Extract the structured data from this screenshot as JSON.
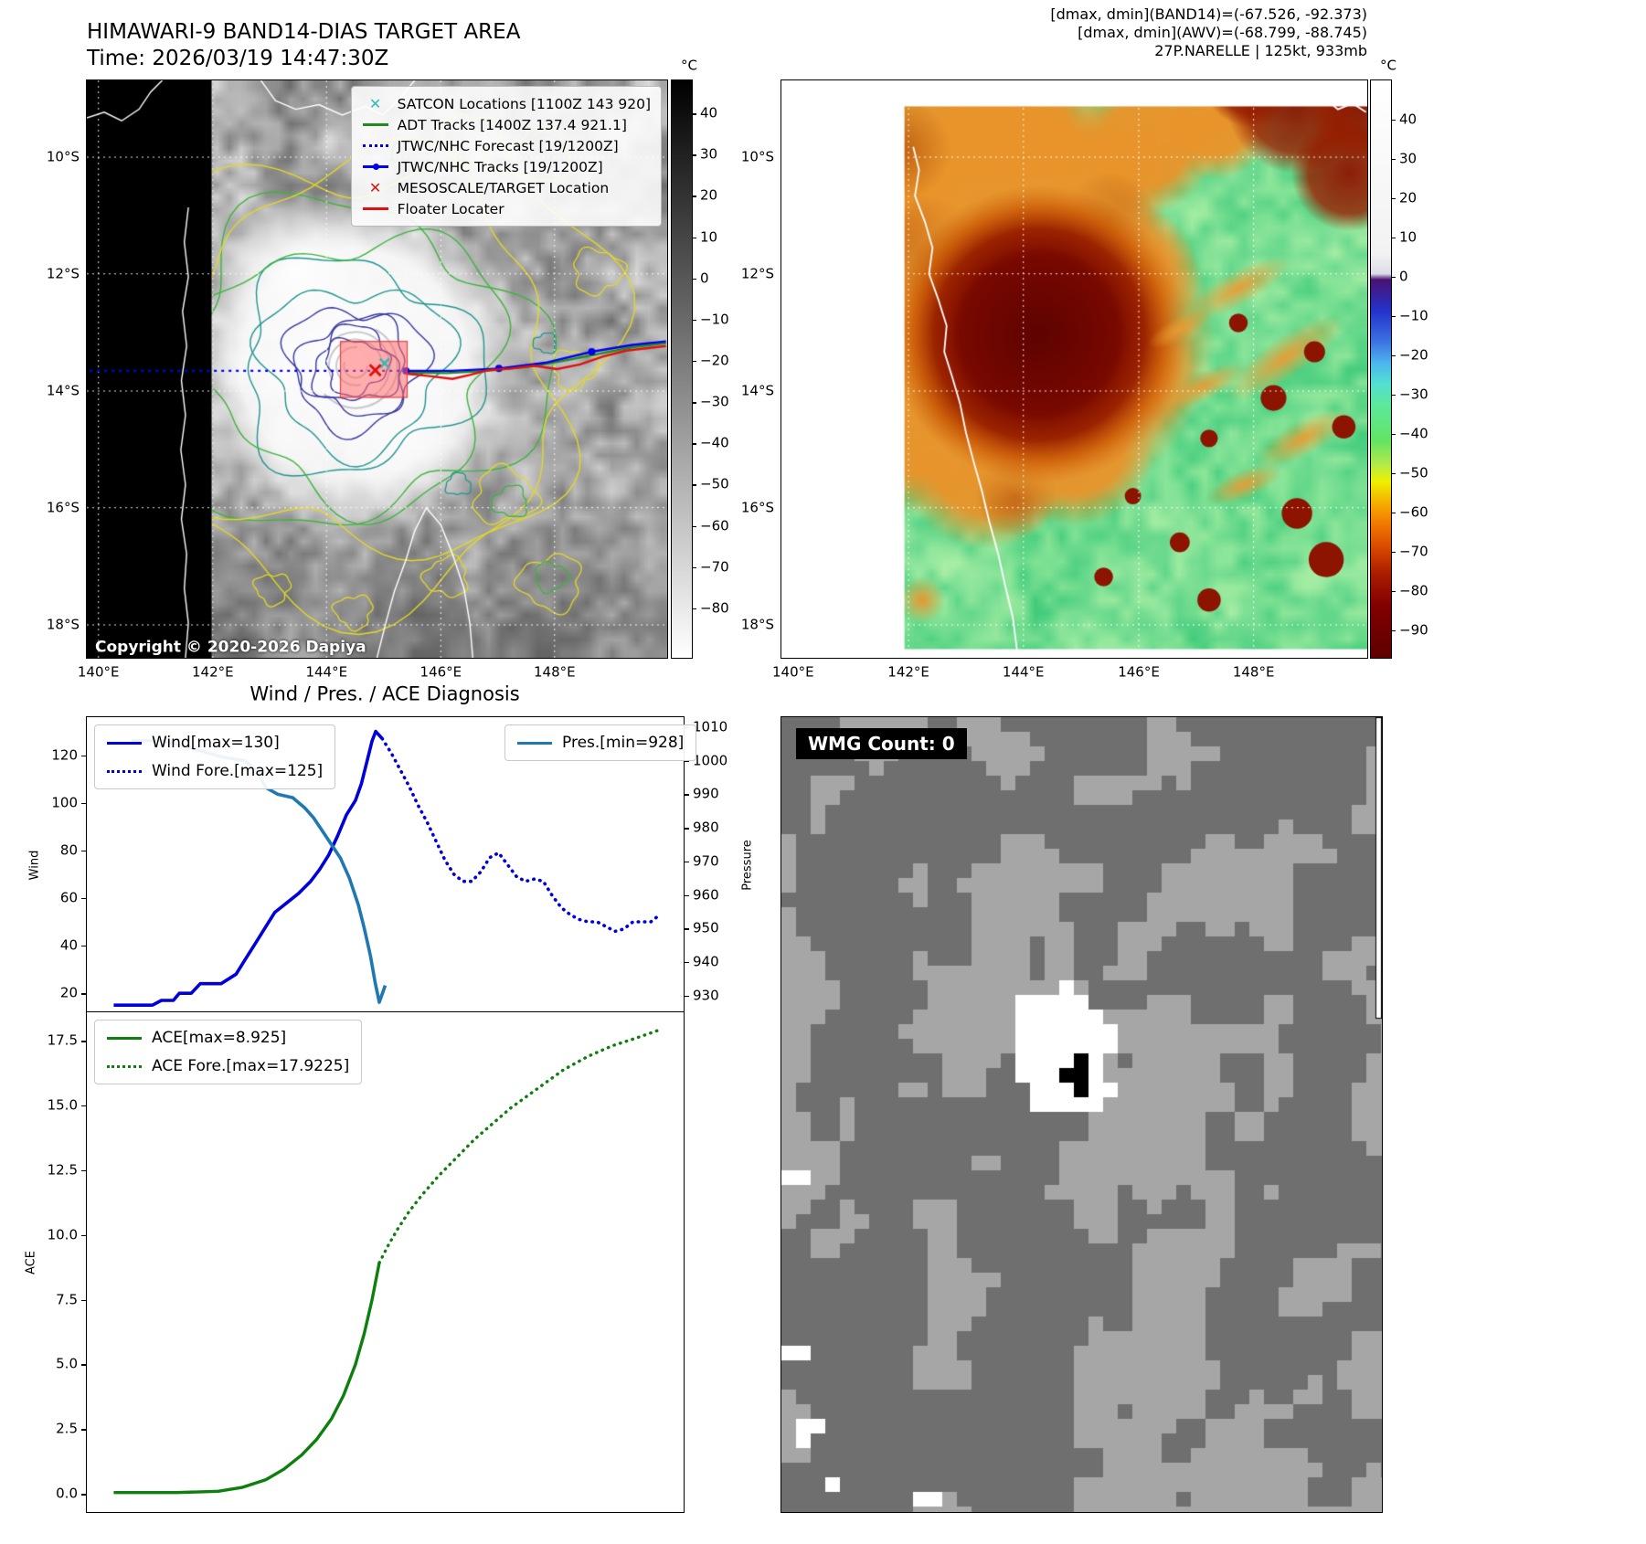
{
  "band14": {
    "title": "HIMAWARI-9 BAND14-DIAS TARGET AREA",
    "subtitle": "Time: 2026/03/19 14:47:30Z",
    "copyright": "Copyright © 2020-2026 Dapiya",
    "legend": [
      {
        "label": "SATCON Locations [1100Z 143 920]",
        "marker": "x",
        "color": "#35b8b8",
        "icon": "satcon-x-icon"
      },
      {
        "label": "ADT Tracks [1400Z 137.4 921.1]",
        "marker": "line",
        "color": "#1f8c1f",
        "icon": "adt-track-line-icon"
      },
      {
        "label": "JTWC/NHC Forecast [19/1200Z]",
        "marker": "dotted",
        "color": "#0000ee",
        "icon": "jtwc-forecast-dotted-icon"
      },
      {
        "label": "JTWC/NHC Tracks [19/1200Z]",
        "marker": "line-marker",
        "color": "#0000ee",
        "icon": "jtwc-track-line-icon"
      },
      {
        "label": "MESOSCALE/TARGET Location",
        "marker": "x",
        "color": "#e01010",
        "icon": "target-x-icon"
      },
      {
        "label": "Floater Locater",
        "marker": "line",
        "color": "#e01010",
        "icon": "floater-line-icon"
      }
    ],
    "x_ticks": [
      "140°E",
      "142°E",
      "144°E",
      "146°E",
      "148°E"
    ],
    "y_ticks": [
      "10°S",
      "12°S",
      "14°S",
      "16°S",
      "18°S"
    ],
    "colorbar": {
      "unit": "°C",
      "range": [
        48,
        -92
      ],
      "tick_values": [
        40,
        30,
        20,
        10,
        0,
        -10,
        -20,
        -30,
        -40,
        -50,
        -60,
        -70,
        -80
      ],
      "tick_labels": [
        "40",
        "30",
        "20",
        "10",
        "0",
        "−10",
        "−20",
        "−30",
        "−40",
        "−50",
        "−60",
        "−70",
        "−80"
      ],
      "gradient": [
        [
          0,
          "#000000"
        ],
        [
          1,
          "#ffffff"
        ]
      ]
    }
  },
  "awv": {
    "header_lines": [
      "[dmax, dmin](BAND14)=(-67.526, -92.373)",
      "[dmax, dmin](AWV)=(-68.799, -88.745)",
      "27P.NARELLE | 125kt, 933mb"
    ],
    "x_ticks": [
      "140°E",
      "142°E",
      "144°E",
      "146°E",
      "148°E"
    ],
    "y_ticks": [
      "10°S",
      "12°S",
      "14°S",
      "16°S",
      "18°S"
    ],
    "colorbar": {
      "unit": "°C",
      "range": [
        50,
        -97
      ],
      "tick_values": [
        40,
        30,
        20,
        10,
        0,
        -10,
        -20,
        -30,
        -40,
        -50,
        -60,
        -70,
        -80,
        -90
      ],
      "tick_labels": [
        "40",
        "30",
        "20",
        "10",
        "0",
        "−10",
        "−20",
        "−30",
        "−40",
        "−50",
        "−60",
        "−70",
        "−80",
        "−90"
      ],
      "gradient": [
        [
          0,
          "#ffffff"
        ],
        [
          0.3,
          "#f2f2f2"
        ],
        [
          0.335,
          "#dcdce8"
        ],
        [
          0.345,
          "#4a1272"
        ],
        [
          0.4,
          "#2233cc"
        ],
        [
          0.45,
          "#3b6fe0"
        ],
        [
          0.49,
          "#4cb6ee"
        ],
        [
          0.525,
          "#52dfd2"
        ],
        [
          0.56,
          "#5ce89e"
        ],
        [
          0.625,
          "#63e463"
        ],
        [
          0.665,
          "#b2ea49"
        ],
        [
          0.695,
          "#eef000"
        ],
        [
          0.735,
          "#f6a800"
        ],
        [
          0.775,
          "#ef7000"
        ],
        [
          0.815,
          "#d24300"
        ],
        [
          0.855,
          "#a81c00"
        ],
        [
          0.91,
          "#820000"
        ],
        [
          0.965,
          "#6c0000"
        ],
        [
          1,
          "#5e0000"
        ]
      ]
    }
  },
  "diagnosis": {
    "title": "Wind / Pres. / ACE Diagnosis"
  },
  "wmg": {
    "label": "WMG Count: 0"
  },
  "chart_data": [
    {
      "type": "line",
      "title": "Wind / Pres. / ACE Diagnosis",
      "subplot": "wind-pressure",
      "grid": false,
      "legend_position": [
        "upper left",
        "upper right"
      ],
      "axes": {
        "left": {
          "label": "Wind",
          "range": [
            12,
            136
          ],
          "tick_values": [
            20,
            40,
            60,
            80,
            100,
            120
          ],
          "tick_labels": [
            "20",
            "40",
            "60",
            "80",
            "100",
            "120"
          ]
        },
        "right": {
          "label": "Pressure",
          "range": [
            925,
            1013
          ],
          "tick_values": [
            930,
            940,
            950,
            960,
            970,
            980,
            990,
            1000,
            1010
          ],
          "tick_labels": [
            "930",
            "940",
            "950",
            "960",
            "970",
            "980",
            "990",
            "1000",
            "1010"
          ]
        }
      },
      "series": [
        {
          "name": "Wind[max=130]",
          "axis": "left",
          "style": "solid",
          "color": "#0000dd",
          "width": 3.6,
          "points": [
            [
              0.045,
              15
            ],
            [
              0.11,
              15
            ],
            [
              0.125,
              17
            ],
            [
              0.145,
              17
            ],
            [
              0.155,
              20
            ],
            [
              0.175,
              20
            ],
            [
              0.19,
              24
            ],
            [
              0.225,
              24
            ],
            [
              0.25,
              28
            ],
            [
              0.265,
              34
            ],
            [
              0.285,
              42
            ],
            [
              0.3,
              48
            ],
            [
              0.315,
              54
            ],
            [
              0.335,
              58
            ],
            [
              0.355,
              62
            ],
            [
              0.375,
              67
            ],
            [
              0.39,
              72
            ],
            [
              0.405,
              78
            ],
            [
              0.42,
              86
            ],
            [
              0.435,
              95
            ],
            [
              0.45,
              101
            ],
            [
              0.46,
              108
            ],
            [
              0.47,
              118
            ],
            [
              0.478,
              126
            ],
            [
              0.484,
              130
            ],
            [
              0.495,
              127
            ]
          ]
        },
        {
          "name": "Wind Fore.[max=125]",
          "axis": "left",
          "style": "dotted",
          "color": "#0000dd",
          "width": 3.6,
          "points": [
            [
              0.495,
              127
            ],
            [
              0.51,
              121
            ],
            [
              0.525,
              114
            ],
            [
              0.54,
              107
            ],
            [
              0.555,
              99
            ],
            [
              0.57,
              92
            ],
            [
              0.585,
              84
            ],
            [
              0.6,
              76
            ],
            [
              0.615,
              70
            ],
            [
              0.63,
              67
            ],
            [
              0.645,
              67
            ],
            [
              0.66,
              71
            ],
            [
              0.675,
              77
            ],
            [
              0.69,
              79
            ],
            [
              0.705,
              74
            ],
            [
              0.72,
              69
            ],
            [
              0.735,
              67
            ],
            [
              0.75,
              68
            ],
            [
              0.765,
              67
            ],
            [
              0.78,
              61
            ],
            [
              0.795,
              56
            ],
            [
              0.81,
              53
            ],
            [
              0.825,
              51
            ],
            [
              0.84,
              50
            ],
            [
              0.855,
              50
            ],
            [
              0.87,
              48
            ],
            [
              0.885,
              46
            ],
            [
              0.9,
              47
            ],
            [
              0.915,
              50
            ],
            [
              0.93,
              50
            ],
            [
              0.945,
              50
            ],
            [
              0.96,
              53
            ]
          ]
        },
        {
          "name": "Pres.[min=928]",
          "axis": "right",
          "style": "solid",
          "color": "#1f77b4",
          "width": 3.6,
          "points": [
            [
              0.075,
              1006
            ],
            [
              0.12,
              1006
            ],
            [
              0.15,
              1005
            ],
            [
              0.19,
              1003
            ],
            [
              0.23,
              1001
            ],
            [
              0.265,
              1000
            ],
            [
              0.285,
              997
            ],
            [
              0.3,
              992
            ],
            [
              0.32,
              990
            ],
            [
              0.345,
              989
            ],
            [
              0.365,
              986
            ],
            [
              0.38,
              983
            ],
            [
              0.395,
              979
            ],
            [
              0.41,
              975
            ],
            [
              0.425,
              971
            ],
            [
              0.44,
              965
            ],
            [
              0.455,
              957
            ],
            [
              0.465,
              950
            ],
            [
              0.475,
              942
            ],
            [
              0.483,
              934
            ],
            [
              0.49,
              928
            ],
            [
              0.5,
              933
            ]
          ]
        }
      ]
    },
    {
      "type": "line",
      "subplot": "ace",
      "grid": false,
      "legend_position": [
        "upper left"
      ],
      "axes": {
        "left": {
          "label": "ACE",
          "range": [
            -0.7,
            18.6
          ],
          "tick_values": [
            0,
            2.5,
            5,
            7.5,
            10,
            12.5,
            15,
            17.5
          ],
          "tick_labels": [
            "0.0",
            "2.5",
            "5.0",
            "7.5",
            "10.0",
            "12.5",
            "15.0",
            "17.5"
          ]
        }
      },
      "series": [
        {
          "name": "ACE[max=8.925]",
          "axis": "left",
          "style": "solid",
          "color": "#0c7f0c",
          "width": 3.4,
          "points": [
            [
              0.045,
              0.05
            ],
            [
              0.15,
              0.05
            ],
            [
              0.22,
              0.1
            ],
            [
              0.26,
              0.25
            ],
            [
              0.3,
              0.55
            ],
            [
              0.33,
              0.95
            ],
            [
              0.36,
              1.5
            ],
            [
              0.385,
              2.1
            ],
            [
              0.41,
              2.9
            ],
            [
              0.43,
              3.8
            ],
            [
              0.45,
              5.0
            ],
            [
              0.465,
              6.2
            ],
            [
              0.478,
              7.5
            ],
            [
              0.49,
              8.925
            ]
          ]
        },
        {
          "name": "ACE Fore.[max=17.9225]",
          "axis": "left",
          "style": "dotted",
          "color": "#0c7f0c",
          "width": 3.4,
          "points": [
            [
              0.49,
              8.925
            ],
            [
              0.505,
              9.6
            ],
            [
              0.52,
              10.2
            ],
            [
              0.54,
              10.9
            ],
            [
              0.56,
              11.5
            ],
            [
              0.59,
              12.3
            ],
            [
              0.62,
              13.0
            ],
            [
              0.65,
              13.7
            ],
            [
              0.68,
              14.3
            ],
            [
              0.71,
              14.9
            ],
            [
              0.74,
              15.4
            ],
            [
              0.77,
              15.9
            ],
            [
              0.8,
              16.4
            ],
            [
              0.84,
              16.9
            ],
            [
              0.88,
              17.3
            ],
            [
              0.92,
              17.6
            ],
            [
              0.96,
              17.9225
            ]
          ]
        }
      ]
    }
  ]
}
